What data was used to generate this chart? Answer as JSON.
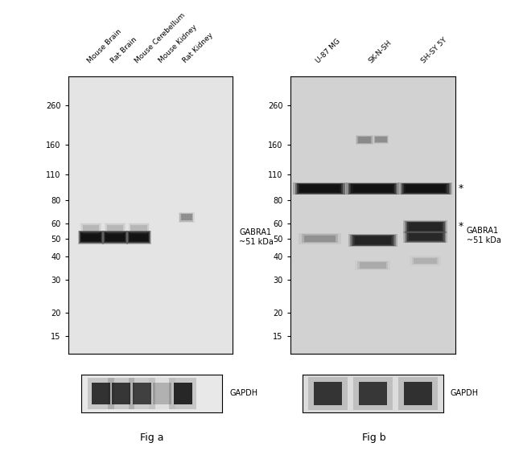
{
  "fig_width": 6.5,
  "fig_height": 5.61,
  "bg_color": "#ffffff",
  "mw_vals": [
    15,
    20,
    30,
    40,
    50,
    60,
    80,
    110,
    160,
    260
  ],
  "mw_labels": [
    "15",
    "20",
    "30",
    "40",
    "50",
    "60",
    "80",
    "110",
    "160",
    "260"
  ],
  "fig_a_samples": [
    "Mouse Brain",
    "Rat Brain",
    "Mouse Cerebellum",
    "Mouse Kidney",
    "Rat Kidney"
  ],
  "fig_b_samples": [
    "U-87 MG",
    "SK-N-SH",
    "SH-SY 5Y"
  ],
  "fig_a_label": "Fig a",
  "fig_b_label": "Fig b",
  "gabra1_label_a": "GABRA1\n~51 kDa",
  "gabra1_label_b": "GABRA1\n~51 kDa",
  "gapdh_label": "GAPDH",
  "panel_a_bg": "#e4e4e4",
  "panel_b_bg": "#d2d2d2",
  "gapdh_bg_a": "#e8e8e8",
  "gapdh_bg_b": "#dcdcdc"
}
